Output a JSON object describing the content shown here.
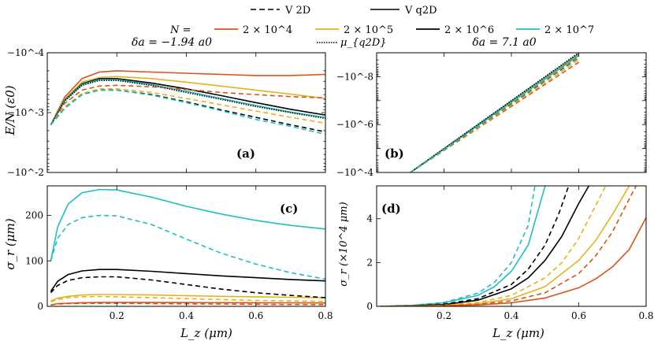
{
  "legend": {
    "style_dashed_label": "V 2D",
    "style_solid_label": "V q2D",
    "style_dotted_label": "μ_{q2D}",
    "n_prefix": "N =",
    "entries": [
      {
        "label": "2 × 10^4",
        "color": "#d95319"
      },
      {
        "label": "2 × 10^5",
        "color": "#e3b31e"
      },
      {
        "label": "2 × 10^6",
        "color": "#000000"
      },
      {
        "label": "2 × 10^7",
        "color": "#1fbfbf"
      }
    ]
  },
  "chart_data": [
    {
      "panel": "(a)",
      "type": "line",
      "title": "δa = −1.94 a0",
      "ylabel": "E/N (ε0)",
      "yscale": "log-reversed",
      "xlim": [
        0,
        0.8
      ],
      "ylim": [
        -0.0001,
        -0.01
      ],
      "ytick_labels": [
        "−10^-4",
        "−10^-3",
        "−10^-2"
      ],
      "x": [
        0.01,
        0.05,
        0.1,
        0.15,
        0.2,
        0.3,
        0.4,
        0.5,
        0.6,
        0.7,
        0.8
      ],
      "series": [
        {
          "color": "#d95319",
          "style": "solid",
          "values": [
            -0.0016,
            -0.00055,
            -0.00027,
            -0.00021,
            -0.0002,
            -0.00021,
            -0.00022,
            -0.00023,
            -0.00024,
            -0.00024,
            -0.00023
          ]
        },
        {
          "color": "#e3b31e",
          "style": "solid",
          "values": [
            -0.0016,
            -0.0006,
            -0.00031,
            -0.00026,
            -0.00025,
            -0.00027,
            -0.00031,
            -0.00036,
            -0.00042,
            -0.00049,
            -0.00058
          ]
        },
        {
          "color": "#000000",
          "style": "solid",
          "values": [
            -0.0016,
            -0.00062,
            -0.00033,
            -0.00027,
            -0.00027,
            -0.00032,
            -0.0004,
            -0.00052,
            -0.00068,
            -0.00088,
            -0.0011
          ]
        },
        {
          "color": "#1fbfbf",
          "style": "solid",
          "values": [
            -0.0016,
            -0.00063,
            -0.00034,
            -0.00028,
            -0.00028,
            -0.00034,
            -0.00044,
            -0.00058,
            -0.00076,
            -0.00098,
            -0.0012
          ]
        },
        {
          "color": "#000000",
          "style": "dotted",
          "values": [
            -0.0016,
            -0.00064,
            -0.00035,
            -0.00029,
            -0.00029,
            -0.00035,
            -0.00046,
            -0.0006,
            -0.00079,
            -0.001,
            -0.00125
          ]
        },
        {
          "color": "#d95319",
          "style": "dashed",
          "values": [
            -0.0016,
            -0.0007,
            -0.00042,
            -0.00036,
            -0.00035,
            -0.00037,
            -0.00041,
            -0.00046,
            -0.0005,
            -0.00054,
            -0.00057
          ]
        },
        {
          "color": "#e3b31e",
          "style": "dashed",
          "values": [
            -0.0016,
            -0.0008,
            -0.00048,
            -0.0004,
            -0.0004,
            -0.00046,
            -0.00058,
            -0.00074,
            -0.00094,
            -0.0012,
            -0.0015
          ]
        },
        {
          "color": "#000000",
          "style": "dashed",
          "values": [
            -0.0016,
            -0.00085,
            -0.0005,
            -0.00042,
            -0.00042,
            -0.0005,
            -0.00066,
            -0.0009,
            -0.0012,
            -0.0016,
            -0.0021
          ]
        },
        {
          "color": "#1fbfbf",
          "style": "dashed",
          "values": [
            -0.0016,
            -0.00085,
            -0.0005,
            -0.00042,
            -0.00042,
            -0.00051,
            -0.00068,
            -0.00093,
            -0.0013,
            -0.0017,
            -0.0023
          ]
        }
      ]
    },
    {
      "panel": "(b)",
      "type": "line",
      "title": "δa = 7.1 a0",
      "yscale": "log-reversed",
      "xlim": [
        0,
        0.8
      ],
      "ylim": [
        -1e-09,
        -0.0001
      ],
      "ytick_labels": [
        "−10^-8",
        "−10^-6",
        "−10^-4"
      ],
      "x": [
        0.1,
        0.6
      ],
      "series": [
        {
          "color": "#d95319",
          "style": "solid",
          "values": [
            -0.0001,
            -1.3e-09
          ]
        },
        {
          "color": "#e3b31e",
          "style": "solid",
          "values": [
            -0.0001,
            -1.2e-09
          ]
        },
        {
          "color": "#000000",
          "style": "solid",
          "values": [
            -0.0001,
            -1.1e-09
          ]
        },
        {
          "color": "#1fbfbf",
          "style": "solid",
          "values": [
            -0.0001,
            -1.1e-09
          ]
        },
        {
          "color": "#000000",
          "style": "dotted",
          "values": [
            -0.0001,
            -1e-09
          ]
        },
        {
          "color": "#d95319",
          "style": "dashed",
          "values": [
            -0.0001,
            -2.5e-09
          ]
        },
        {
          "color": "#e3b31e",
          "style": "dashed",
          "values": [
            -0.0001,
            -2e-09
          ]
        },
        {
          "color": "#000000",
          "style": "dashed",
          "values": [
            -0.0001,
            -1.6e-09
          ]
        },
        {
          "color": "#1fbfbf",
          "style": "dashed",
          "values": [
            -0.0001,
            -1.5e-09
          ]
        }
      ]
    },
    {
      "panel": "(c)",
      "type": "line",
      "xlabel": "L_z (μm)",
      "ylabel": "σ_r (μm)",
      "xlim": [
        0,
        0.8
      ],
      "ylim": [
        0,
        265
      ],
      "xticks": [
        0.2,
        0.4,
        0.6,
        0.8
      ],
      "yticks": [
        0,
        100,
        200
      ],
      "x": [
        0.01,
        0.03,
        0.06,
        0.1,
        0.15,
        0.2,
        0.3,
        0.4,
        0.5,
        0.6,
        0.7,
        0.8
      ],
      "series": [
        {
          "color": "#d95319",
          "style": "solid",
          "values": [
            3,
            6,
            7,
            8,
            8.5,
            8.5,
            8.5,
            8.4,
            8.2,
            8,
            7.8,
            7.5
          ]
        },
        {
          "color": "#e3b31e",
          "style": "solid",
          "values": [
            12,
            18,
            22,
            25,
            26,
            26,
            25,
            23.5,
            22,
            21,
            20,
            19
          ]
        },
        {
          "color": "#000000",
          "style": "solid",
          "values": [
            33,
            55,
            70,
            78,
            81,
            81,
            77,
            72,
            67,
            63,
            59,
            56
          ]
        },
        {
          "color": "#1fbfbf",
          "style": "solid",
          "values": [
            100,
            175,
            225,
            250,
            257,
            256,
            240,
            220,
            203,
            189,
            178,
            170
          ]
        },
        {
          "color": "#d95319",
          "style": "dashed",
          "values": [
            3,
            5,
            6,
            6.5,
            6.5,
            6.5,
            6,
            5.5,
            5,
            4.5,
            4,
            3.8
          ]
        },
        {
          "color": "#e3b31e",
          "style": "dashed",
          "values": [
            10,
            15,
            19,
            21,
            21.5,
            21,
            19,
            17,
            15,
            13,
            12,
            11
          ]
        },
        {
          "color": "#000000",
          "style": "dashed",
          "values": [
            30,
            46,
            57,
            63,
            65,
            65,
            58,
            48,
            38,
            30,
            24,
            19
          ]
        },
        {
          "color": "#1fbfbf",
          "style": "dashed",
          "values": [
            100,
            150,
            180,
            195,
            200,
            199,
            180,
            148,
            117,
            93,
            74,
            60
          ]
        }
      ]
    },
    {
      "panel": "(d)",
      "type": "line",
      "xlabel": "L_z (μm)",
      "ylabel": "σ_r (×10^4 μm)",
      "xlim": [
        0,
        0.8
      ],
      "ylim": [
        0,
        5.5
      ],
      "xticks": [
        0.2,
        0.4,
        0.6,
        0.8
      ],
      "yticks": [
        0,
        2,
        4
      ],
      "series": [
        {
          "color": "#1fbfbf",
          "style": "dashed",
          "x": [
            0.01,
            0.1,
            0.2,
            0.3,
            0.35,
            0.4,
            0.45,
            0.47
          ],
          "values": [
            0,
            0.04,
            0.18,
            0.6,
            1.1,
            2,
            3.7,
            5.5
          ]
        },
        {
          "color": "#1fbfbf",
          "style": "solid",
          "x": [
            0.01,
            0.1,
            0.2,
            0.3,
            0.35,
            0.4,
            0.45,
            0.5
          ],
          "values": [
            0,
            0.04,
            0.16,
            0.5,
            0.9,
            1.6,
            2.8,
            5.5
          ]
        },
        {
          "color": "#000000",
          "style": "dashed",
          "x": [
            0.01,
            0.1,
            0.2,
            0.3,
            0.4,
            0.45,
            0.5,
            0.54,
            0.57
          ],
          "values": [
            0,
            0.02,
            0.1,
            0.35,
            1,
            1.7,
            2.8,
            4.2,
            5.5
          ]
        },
        {
          "color": "#000000",
          "style": "solid",
          "x": [
            0.01,
            0.1,
            0.2,
            0.3,
            0.4,
            0.45,
            0.5,
            0.55,
            0.6,
            0.63
          ],
          "values": [
            0,
            0.02,
            0.08,
            0.28,
            0.8,
            1.3,
            2.1,
            3.2,
            4.7,
            5.5
          ]
        },
        {
          "color": "#e3b31e",
          "style": "dashed",
          "x": [
            0.01,
            0.1,
            0.2,
            0.3,
            0.4,
            0.5,
            0.55,
            0.6,
            0.65,
            0.68
          ],
          "values": [
            0,
            0.01,
            0.05,
            0.17,
            0.5,
            1.3,
            2,
            3.1,
            4.6,
            5.5
          ]
        },
        {
          "color": "#e3b31e",
          "style": "solid",
          "x": [
            0.01,
            0.1,
            0.2,
            0.3,
            0.4,
            0.5,
            0.6,
            0.65,
            0.7,
            0.75
          ],
          "values": [
            0,
            0.01,
            0.04,
            0.12,
            0.35,
            0.9,
            2.1,
            3,
            4.2,
            5.5
          ]
        },
        {
          "color": "#d95319",
          "style": "dashed",
          "x": [
            0.01,
            0.1,
            0.2,
            0.3,
            0.4,
            0.5,
            0.6,
            0.65,
            0.7,
            0.74,
            0.77
          ],
          "values": [
            0,
            0.005,
            0.03,
            0.09,
            0.25,
            0.62,
            1.5,
            2.3,
            3.4,
            4.6,
            5.5
          ]
        },
        {
          "color": "#d95319",
          "style": "solid",
          "x": [
            0.01,
            0.1,
            0.2,
            0.3,
            0.4,
            0.5,
            0.6,
            0.65,
            0.7,
            0.75,
            0.8
          ],
          "values": [
            0,
            0.005,
            0.02,
            0.06,
            0.16,
            0.38,
            0.85,
            1.25,
            1.8,
            2.6,
            4.05
          ]
        }
      ]
    }
  ]
}
